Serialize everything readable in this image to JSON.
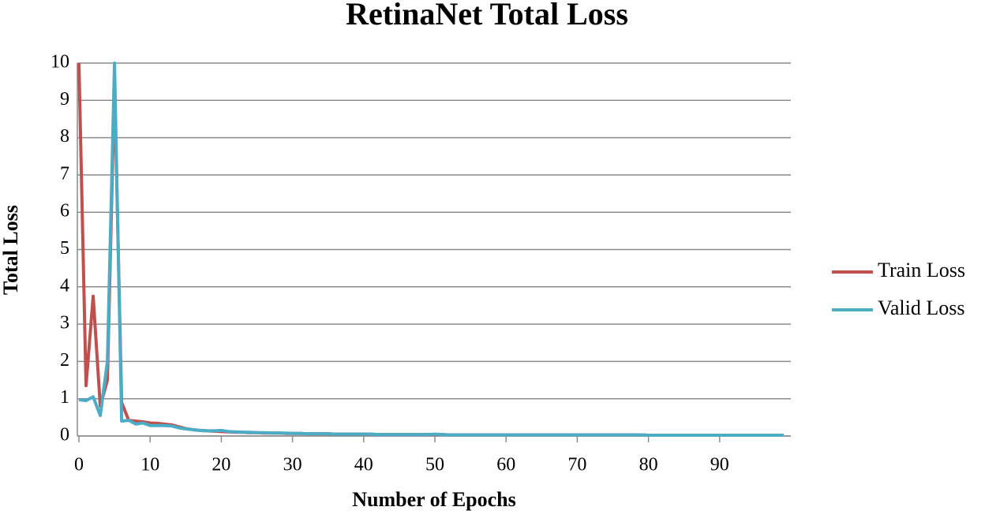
{
  "chart_data": {
    "type": "line",
    "title": "RetinaNet Total Loss",
    "xlabel": "Number of Epochs",
    "ylabel": "Total Loss",
    "x": [
      0,
      1,
      2,
      3,
      4,
      5,
      6,
      7,
      8,
      9,
      10,
      11,
      12,
      13,
      14,
      15,
      16,
      17,
      18,
      19,
      20,
      21,
      22,
      23,
      24,
      25,
      26,
      27,
      28,
      29,
      30,
      31,
      32,
      33,
      34,
      35,
      36,
      37,
      38,
      39,
      40,
      41,
      42,
      43,
      44,
      45,
      46,
      47,
      48,
      49,
      50,
      51,
      52,
      53,
      54,
      55,
      56,
      57,
      58,
      59,
      60,
      61,
      62,
      63,
      64,
      65,
      66,
      67,
      68,
      69,
      70,
      71,
      72,
      73,
      74,
      75,
      76,
      77,
      78,
      79,
      80,
      81,
      82,
      83,
      84,
      85,
      86,
      87,
      88,
      89,
      90,
      91,
      92,
      93,
      94,
      95,
      96,
      97,
      98,
      99
    ],
    "series": [
      {
        "name": "Train Loss",
        "color": "#c0504d",
        "values": [
          10,
          1.35,
          3.75,
          0.8,
          1.5,
          9.5,
          0.9,
          0.42,
          0.4,
          0.38,
          0.35,
          0.34,
          0.32,
          0.3,
          0.25,
          0.2,
          0.17,
          0.15,
          0.14,
          0.13,
          0.12,
          0.11,
          0.1,
          0.1,
          0.09,
          0.09,
          0.08,
          0.08,
          0.08,
          0.07,
          0.07,
          0.07,
          0.06,
          0.06,
          0.06,
          0.06,
          0.05,
          0.05,
          0.05,
          0.05,
          0.05,
          0.05,
          0.04,
          0.04,
          0.04,
          0.04,
          0.04,
          0.04,
          0.04,
          0.04,
          0.04,
          0.04,
          0.03,
          0.03,
          0.03,
          0.03,
          0.03,
          0.03,
          0.03,
          0.03,
          0.03,
          0.03,
          0.03,
          0.03,
          0.03,
          0.03,
          0.03,
          0.03,
          0.03,
          0.03,
          0.03,
          0.03,
          0.03,
          0.03,
          0.03,
          0.03,
          0.03,
          0.03,
          0.03,
          0.03,
          0.02,
          0.02,
          0.02,
          0.02,
          0.02,
          0.02,
          0.02,
          0.02,
          0.02,
          0.02,
          0.02,
          0.02,
          0.02,
          0.02,
          0.02,
          0.02,
          0.02,
          0.02,
          0.02,
          0.02
        ]
      },
      {
        "name": "Valid Loss",
        "color": "#4bacc6",
        "values": [
          0.97,
          0.95,
          1.05,
          0.55,
          2,
          10,
          0.4,
          0.42,
          0.32,
          0.35,
          0.28,
          0.28,
          0.28,
          0.27,
          0.22,
          0.19,
          0.17,
          0.15,
          0.14,
          0.14,
          0.15,
          0.12,
          0.11,
          0.1,
          0.1,
          0.09,
          0.09,
          0.08,
          0.08,
          0.08,
          0.07,
          0.07,
          0.06,
          0.06,
          0.06,
          0.06,
          0.05,
          0.05,
          0.05,
          0.05,
          0.05,
          0.05,
          0.04,
          0.04,
          0.04,
          0.04,
          0.04,
          0.04,
          0.04,
          0.04,
          0.05,
          0.04,
          0.03,
          0.03,
          0.03,
          0.03,
          0.03,
          0.03,
          0.03,
          0.03,
          0.03,
          0.03,
          0.03,
          0.03,
          0.03,
          0.03,
          0.03,
          0.03,
          0.03,
          0.03,
          0.03,
          0.03,
          0.03,
          0.03,
          0.03,
          0.03,
          0.03,
          0.03,
          0.03,
          0.03,
          0.02,
          0.02,
          0.02,
          0.02,
          0.02,
          0.02,
          0.02,
          0.02,
          0.02,
          0.02,
          0.02,
          0.02,
          0.02,
          0.02,
          0.02,
          0.02,
          0.02,
          0.02,
          0.02,
          0.02
        ]
      }
    ],
    "xlim": [
      0,
      100
    ],
    "xticks": [
      0,
      10,
      20,
      30,
      40,
      50,
      60,
      70,
      80,
      90
    ],
    "ylim": [
      0,
      10
    ],
    "yticks": [
      0,
      1,
      2,
      3,
      4,
      5,
      6,
      7,
      8,
      9,
      10
    ],
    "grid": true,
    "legend": "right"
  }
}
